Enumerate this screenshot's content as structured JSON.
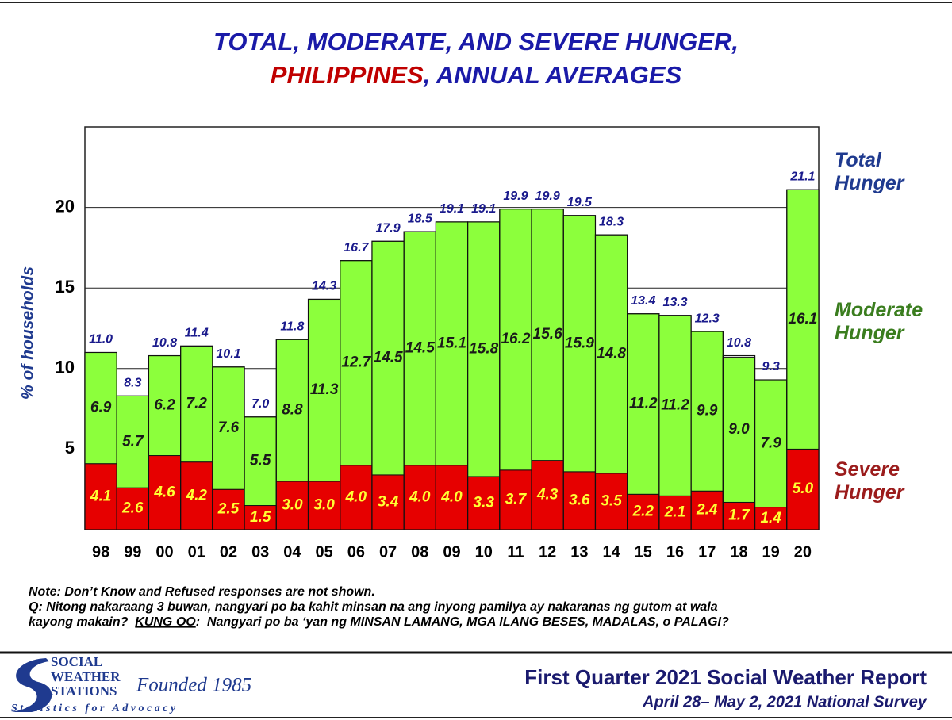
{
  "chart_data": {
    "type": "bar",
    "stacked": true,
    "title_lines": [
      [
        {
          "text": "TOTAL, MODERATE, AND SEVERE HUNGER,",
          "color": "#1a1aa8"
        }
      ],
      [
        {
          "text": "PHILIPPINES",
          "color": "#c00000"
        },
        {
          "text": ", ANNUAL AVERAGES",
          "color": "#1a1aa8"
        }
      ]
    ],
    "y_label": "% of households",
    "categories": [
      "98",
      "99",
      "00",
      "01",
      "02",
      "03",
      "04",
      "05",
      "06",
      "07",
      "08",
      "09",
      "10",
      "11",
      "12",
      "13",
      "14",
      "15",
      "16",
      "17",
      "18",
      "19",
      "20"
    ],
    "series": [
      {
        "name": "Severe Hunger",
        "color": "#e60000",
        "label_color": "#ffff33",
        "legend_color": "#9b1c1c",
        "values": [
          4.1,
          2.6,
          4.6,
          4.2,
          2.5,
          1.5,
          3.0,
          3.0,
          4.0,
          3.4,
          4.0,
          4.0,
          3.3,
          3.7,
          4.3,
          3.6,
          3.5,
          2.2,
          2.1,
          2.4,
          1.7,
          1.4,
          5.0
        ],
        "value_labels": [
          "4.1",
          "2.6",
          "4.6",
          "4.2",
          "2.5",
          "1.5",
          "3.0",
          "3.0",
          "4.0",
          "3.4",
          "4.0",
          "4.0",
          "3.3",
          "3.7",
          "4.3",
          "3.6",
          "3.5",
          "2.2",
          "2.1",
          "2.4",
          "1.7",
          "1.4",
          "5.0"
        ]
      },
      {
        "name": "Moderate Hunger",
        "color": "#8cff3c",
        "label_color": "#1a1a1a",
        "legend_color": "#3a7d1e",
        "values": [
          6.9,
          5.7,
          6.2,
          7.2,
          7.6,
          5.5,
          8.8,
          11.3,
          12.7,
          14.5,
          14.5,
          15.1,
          15.8,
          16.2,
          15.6,
          15.9,
          14.8,
          11.2,
          11.2,
          9.9,
          9.0,
          7.9,
          16.1
        ],
        "value_labels": [
          "6.9",
          "5.7",
          "6.2",
          "7.2",
          "7.6",
          "5.5",
          "8.8",
          "11.3",
          "12.7",
          "14.5",
          "14.5",
          "15.1",
          "15.8",
          "16.2",
          "15.6",
          "15.9",
          "14.8",
          "11.2",
          "11.2",
          "9.9",
          "9.0",
          "7.9",
          "16.1"
        ]
      }
    ],
    "totals": {
      "name": "Total Hunger",
      "label_color": "#1a1a8c",
      "legend_color": "#1f3a8f",
      "values": [
        11.0,
        8.3,
        10.8,
        11.4,
        10.1,
        7.0,
        11.8,
        14.3,
        16.7,
        17.9,
        18.5,
        19.1,
        19.1,
        19.9,
        19.9,
        19.5,
        18.3,
        13.4,
        13.3,
        12.3,
        10.8,
        9.3,
        21.1
      ],
      "value_labels": [
        "11.0",
        "8.3",
        "10.8",
        "11.4",
        "10.1",
        "7.0",
        "11.8",
        "14.3",
        "16.7",
        "17.9",
        "18.5",
        "19.1",
        "19.1",
        "19.9",
        "19.9",
        "19.5",
        "18.3",
        "13.4",
        "13.3",
        "12.3",
        "10.8",
        "9.3",
        "21.1"
      ]
    },
    "ylim": [
      0,
      25
    ],
    "yticks": [
      5,
      10,
      15,
      20
    ],
    "grid": true
  },
  "notes": {
    "line1": "Note: Don’t Know and Refused responses are not shown.",
    "line2": "Q: Nitong nakaraang 3 buwan, nangyari po ba kahit minsan na ang inyong pamilya ay nakaranas ng gutom at wala",
    "line3_start": "kayong makain?  ",
    "line3_underlined": "KUNG OO",
    "line3_end": ":  Nangyari po ba ‘yan ng MINSAN LAMANG, MGA ILANG BESES, MADALAS, o PALAGI?"
  },
  "footer": {
    "logo_lines": [
      "SOCIAL",
      "WEATHER",
      "STATIONS"
    ],
    "founded": "Founded 1985",
    "tagline": "Statistics for Advocacy",
    "report": "First Quarter 2021 Social Weather Report",
    "survey": "April 28– May 2, 2021 National Survey"
  }
}
